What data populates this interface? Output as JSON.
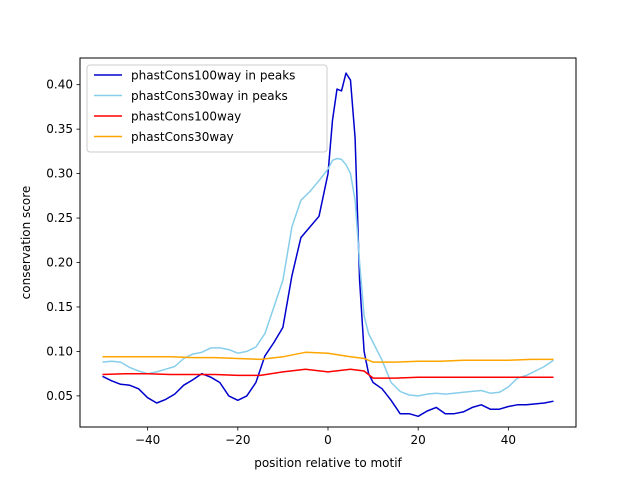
{
  "chart_data": {
    "type": "line",
    "xlabel": "position relative to motif",
    "ylabel": "conservation score",
    "xlim": [
      -55,
      55
    ],
    "ylim": [
      0.015,
      0.43
    ],
    "xticks": [
      -40,
      -20,
      0,
      20,
      40
    ],
    "xtick_labels": [
      "−40",
      "−20",
      "0",
      "20",
      "40"
    ],
    "yticks": [
      0.05,
      0.1,
      0.15,
      0.2,
      0.25,
      0.3,
      0.35,
      0.4
    ],
    "ytick_labels": [
      "0.05",
      "0.10",
      "0.15",
      "0.20",
      "0.25",
      "0.30",
      "0.35",
      "0.40"
    ],
    "grid": false,
    "legend_position": "top-left",
    "series": [
      {
        "name": "phastCons100way in peaks",
        "color": "#0000cd",
        "x": [
          -50,
          -48,
          -46,
          -44,
          -42,
          -40,
          -38,
          -36,
          -34,
          -32,
          -30,
          -28,
          -26,
          -24,
          -22,
          -20,
          -18,
          -16,
          -14,
          -12,
          -10,
          -8,
          -6,
          -4,
          -2,
          0,
          1,
          2,
          3,
          4,
          5,
          6,
          7,
          8,
          9,
          10,
          12,
          14,
          16,
          18,
          20,
          22,
          24,
          26,
          28,
          30,
          32,
          34,
          36,
          38,
          40,
          42,
          44,
          46,
          48,
          50
        ],
        "y": [
          0.072,
          0.067,
          0.063,
          0.062,
          0.058,
          0.048,
          0.042,
          0.046,
          0.052,
          0.062,
          0.068,
          0.075,
          0.071,
          0.065,
          0.05,
          0.045,
          0.05,
          0.065,
          0.095,
          0.11,
          0.127,
          0.185,
          0.228,
          0.24,
          0.252,
          0.3,
          0.36,
          0.395,
          0.393,
          0.413,
          0.405,
          0.34,
          0.18,
          0.1,
          0.075,
          0.065,
          0.058,
          0.045,
          0.03,
          0.03,
          0.027,
          0.033,
          0.037,
          0.03,
          0.03,
          0.032,
          0.037,
          0.04,
          0.035,
          0.035,
          0.038,
          0.04,
          0.04,
          0.041,
          0.042,
          0.044
        ]
      },
      {
        "name": "phastCons30way in peaks",
        "color": "#87ceeb",
        "x": [
          -50,
          -48,
          -46,
          -44,
          -42,
          -40,
          -38,
          -36,
          -34,
          -32,
          -30,
          -28,
          -26,
          -24,
          -22,
          -20,
          -18,
          -16,
          -14,
          -12,
          -10,
          -8,
          -6,
          -4,
          -2,
          0,
          1,
          2,
          3,
          4,
          5,
          6,
          7,
          8,
          9,
          10,
          12,
          14,
          16,
          18,
          20,
          22,
          24,
          26,
          28,
          30,
          32,
          34,
          36,
          38,
          40,
          42,
          44,
          46,
          48,
          50
        ],
        "y": [
          0.088,
          0.089,
          0.088,
          0.082,
          0.078,
          0.075,
          0.077,
          0.08,
          0.083,
          0.092,
          0.097,
          0.099,
          0.104,
          0.104,
          0.102,
          0.098,
          0.1,
          0.105,
          0.12,
          0.15,
          0.18,
          0.24,
          0.27,
          0.28,
          0.292,
          0.305,
          0.315,
          0.317,
          0.316,
          0.31,
          0.3,
          0.27,
          0.2,
          0.14,
          0.12,
          0.11,
          0.09,
          0.065,
          0.055,
          0.051,
          0.05,
          0.052,
          0.053,
          0.052,
          0.053,
          0.054,
          0.055,
          0.056,
          0.053,
          0.054,
          0.06,
          0.07,
          0.073,
          0.078,
          0.083,
          0.09
        ]
      },
      {
        "name": "phastCons100way",
        "color": "#ff0000",
        "x": [
          -50,
          -45,
          -40,
          -35,
          -30,
          -25,
          -20,
          -15,
          -10,
          -5,
          0,
          5,
          8,
          10,
          15,
          20,
          25,
          30,
          35,
          40,
          45,
          50
        ],
        "y": [
          0.074,
          0.075,
          0.075,
          0.074,
          0.074,
          0.074,
          0.073,
          0.073,
          0.077,
          0.08,
          0.077,
          0.08,
          0.078,
          0.07,
          0.07,
          0.071,
          0.071,
          0.071,
          0.071,
          0.071,
          0.071,
          0.071
        ]
      },
      {
        "name": "phastCons30way",
        "color": "#ffa500",
        "x": [
          -50,
          -45,
          -40,
          -35,
          -30,
          -25,
          -20,
          -15,
          -10,
          -5,
          0,
          5,
          8,
          10,
          15,
          20,
          25,
          30,
          35,
          40,
          45,
          50
        ],
        "y": [
          0.094,
          0.094,
          0.094,
          0.094,
          0.093,
          0.093,
          0.092,
          0.091,
          0.094,
          0.099,
          0.098,
          0.094,
          0.092,
          0.088,
          0.088,
          0.089,
          0.089,
          0.09,
          0.09,
          0.09,
          0.091,
          0.091
        ]
      }
    ]
  }
}
